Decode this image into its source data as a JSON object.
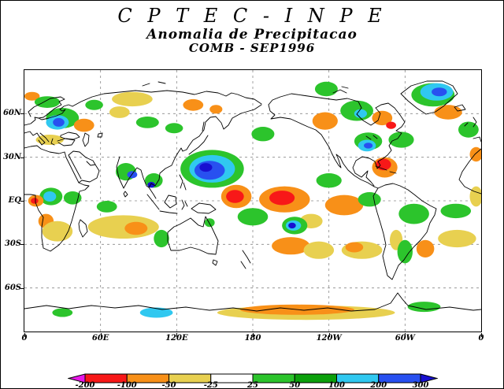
{
  "header": {
    "org_title": "C P T E C  -  I N P E",
    "subtitle": "Anomalia de Precipitacao",
    "run_label": "COMB - SEP1996"
  },
  "axes": {
    "lat_ticks": [
      {
        "label": "60N",
        "lat": 60
      },
      {
        "label": "30N",
        "lat": 30
      },
      {
        "label": "EQ",
        "lat": 0
      },
      {
        "label": "30S",
        "lat": -30
      },
      {
        "label": "60S",
        "lat": -60
      }
    ],
    "lon_ticks": [
      {
        "label": "0",
        "lon": 0
      },
      {
        "label": "60E",
        "lon": 60
      },
      {
        "label": "120E",
        "lon": 120
      },
      {
        "label": "180",
        "lon": 180
      },
      {
        "label": "120W",
        "lon": 240
      },
      {
        "label": "60W",
        "lon": 300
      },
      {
        "label": "0",
        "lon": 360
      }
    ]
  },
  "colorbar": {
    "tick_labels": [
      "-200",
      "-100",
      "-50",
      "-25",
      "25",
      "50",
      "100",
      "200",
      "300"
    ]
  },
  "chart_data": {
    "type": "heatmap",
    "title": "CPTEC - INPE",
    "subtitle": "Anomalia de Precipitacao",
    "dataset": "COMB - SEP1996",
    "projection": "latlon",
    "lon_range": [
      0,
      360
    ],
    "lat_range": [
      -90,
      90
    ],
    "grid_interval_deg": {
      "lat": 30,
      "lon": 60
    },
    "levels": [
      -200,
      -100,
      -50,
      -25,
      25,
      50,
      100,
      200,
      300
    ],
    "palette": [
      "#e818e8",
      "#f81818",
      "#f89018",
      "#e8d050",
      "#ffffff",
      "#2cc42c",
      "#0ca00c",
      "#30c8f0",
      "#2850f0",
      "#1810d0"
    ],
    "region_format": "lon_deg(0-360), lat_deg, rx_deg, ry_deg, palette_index",
    "anomaly_regions": [
      [
        6,
        72,
        6,
        3,
        2
      ],
      [
        18,
        68,
        10,
        4,
        5
      ],
      [
        30,
        57,
        13,
        7,
        5
      ],
      [
        26,
        54,
        9,
        5,
        7
      ],
      [
        27,
        54,
        4.5,
        3,
        8
      ],
      [
        47,
        52,
        8,
        4.5,
        2
      ],
      [
        20,
        42,
        11,
        3.5,
        3
      ],
      [
        55,
        66,
        7,
        3.5,
        5
      ],
      [
        85,
        70,
        16,
        5,
        3
      ],
      [
        75,
        61,
        8,
        4,
        3
      ],
      [
        97,
        54,
        9,
        4,
        5
      ],
      [
        118,
        50,
        7,
        3.5,
        5
      ],
      [
        133,
        66,
        8,
        4,
        2
      ],
      [
        151,
        63,
        5,
        3,
        2
      ],
      [
        80,
        20,
        8,
        6,
        5
      ],
      [
        85,
        18,
        4,
        2.5,
        8
      ],
      [
        102,
        14,
        7,
        5,
        5
      ],
      [
        100,
        11,
        3,
        2,
        9
      ],
      [
        148,
        22,
        25,
        13,
        5
      ],
      [
        148,
        22,
        18,
        9.5,
        7
      ],
      [
        146,
        21,
        12,
        6.5,
        8
      ],
      [
        143,
        23,
        5,
        3,
        9
      ],
      [
        167,
        3,
        12,
        8,
        2
      ],
      [
        166,
        3,
        7,
        4.5,
        1
      ],
      [
        205,
        1,
        20,
        9,
        2
      ],
      [
        203,
        2,
        10,
        5,
        1
      ],
      [
        226,
        -14,
        9,
        5,
        3
      ],
      [
        188,
        46,
        9,
        5,
        5
      ],
      [
        237,
        55,
        10,
        6,
        2
      ],
      [
        238,
        77,
        9,
        5,
        5
      ],
      [
        262,
        62,
        13,
        7,
        5
      ],
      [
        265,
        60,
        5,
        3,
        7
      ],
      [
        282,
        57,
        8,
        5,
        2
      ],
      [
        289,
        52,
        4,
        2.5,
        1
      ],
      [
        271,
        41,
        11,
        6,
        5
      ],
      [
        270,
        38,
        7,
        4,
        7
      ],
      [
        271,
        38,
        3.5,
        2,
        8
      ],
      [
        284,
        23,
        10,
        7,
        2
      ],
      [
        283,
        25,
        6,
        4,
        1
      ],
      [
        297,
        42,
        10,
        5.5,
        5
      ],
      [
        322,
        73,
        17,
        8,
        5
      ],
      [
        325,
        75,
        13,
        6,
        7
      ],
      [
        327,
        75,
        6,
        3,
        8
      ],
      [
        334,
        61,
        11,
        5,
        2
      ],
      [
        350,
        49,
        8,
        5.5,
        5
      ],
      [
        356,
        32,
        5,
        5,
        2
      ],
      [
        356,
        3,
        5,
        7,
        3
      ],
      [
        21,
        3,
        9,
        6,
        5
      ],
      [
        20,
        3,
        5,
        3.5,
        7
      ],
      [
        9,
        0,
        6,
        4,
        2
      ],
      [
        8,
        0,
        3,
        2,
        1
      ],
      [
        38,
        2,
        7,
        4.5,
        5
      ],
      [
        17,
        -14,
        6,
        5,
        2
      ],
      [
        26,
        -21,
        12,
        7,
        3
      ],
      [
        65,
        -4,
        8,
        4,
        5
      ],
      [
        78,
        -18,
        28,
        8,
        3
      ],
      [
        88,
        -19,
        9,
        4.5,
        2
      ],
      [
        108,
        -26,
        6,
        6,
        5
      ],
      [
        180,
        -11,
        12,
        6,
        5
      ],
      [
        146,
        -15,
        4,
        3,
        5
      ],
      [
        213,
        -17,
        10,
        6,
        5
      ],
      [
        212,
        -17,
        6,
        3.5,
        7
      ],
      [
        211,
        -17,
        3,
        2,
        9
      ],
      [
        210,
        -31,
        15,
        6,
        2
      ],
      [
        232,
        -34,
        12,
        6,
        3
      ],
      [
        266,
        -34,
        16,
        6,
        3
      ],
      [
        260,
        -32,
        7,
        3.5,
        2
      ],
      [
        240,
        14,
        10,
        5,
        5
      ],
      [
        252,
        -3,
        15,
        7,
        2
      ],
      [
        272,
        1,
        9,
        5,
        5
      ],
      [
        307,
        -9,
        12,
        7,
        5
      ],
      [
        293,
        -27,
        5,
        7,
        3
      ],
      [
        300,
        -35,
        6,
        8,
        5
      ],
      [
        316,
        -33,
        7,
        6,
        2
      ],
      [
        340,
        -7,
        12,
        5,
        5
      ],
      [
        341,
        -26,
        15,
        6,
        3
      ],
      [
        222,
        -77,
        70,
        5,
        3
      ],
      [
        215,
        -75,
        45,
        3.5,
        2
      ],
      [
        104,
        -77,
        13,
        3.5,
        7
      ],
      [
        315,
        -73,
        13,
        3.5,
        5
      ],
      [
        30,
        -77,
        8,
        3,
        5
      ]
    ]
  }
}
